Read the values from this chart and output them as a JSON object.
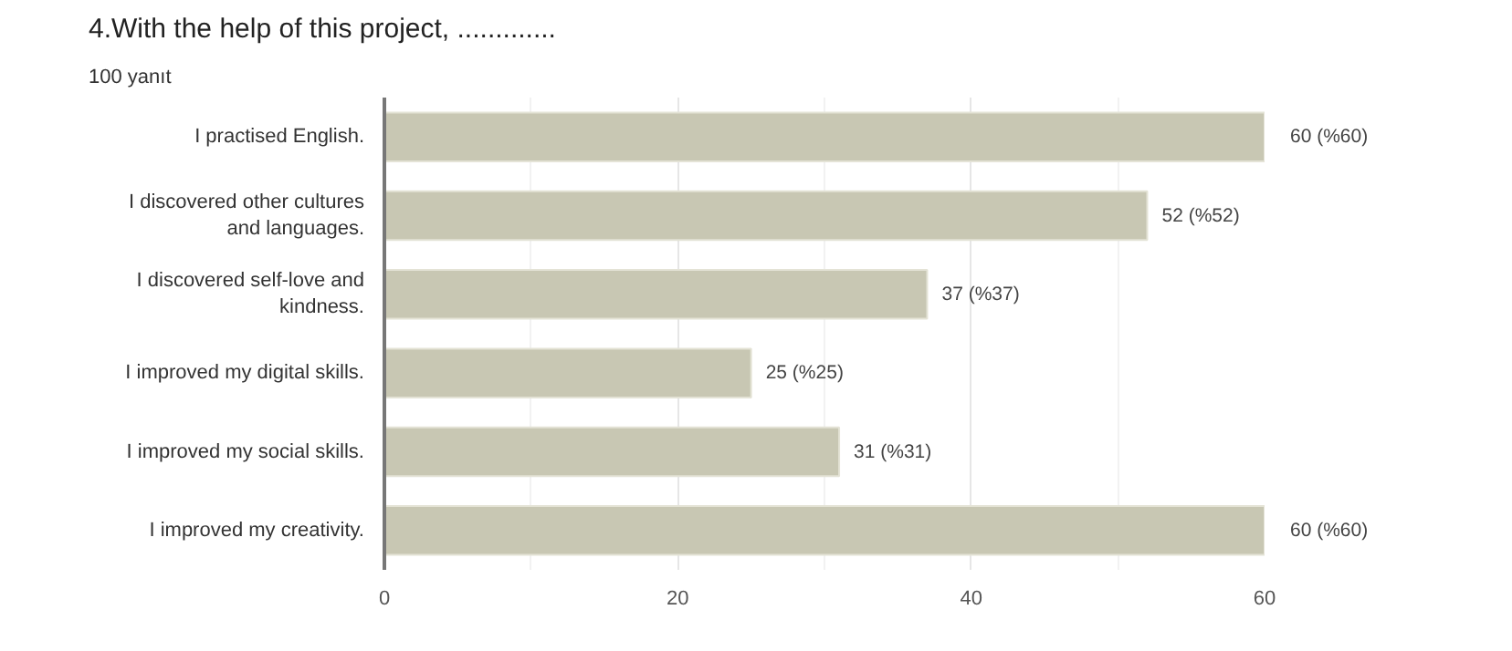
{
  "chart_data": {
    "type": "bar",
    "orientation": "horizontal",
    "title": "4.With the help of this project, .............",
    "subtitle": "100 yanıt",
    "categories": [
      "I practised English.",
      "I discovered other cultures and languages.",
      "I discovered self-love and kindness.",
      "I improved my digital skills.",
      "I improved my social skills.",
      "I improved my creativity."
    ],
    "values": [
      60,
      52,
      37,
      25,
      31,
      60
    ],
    "value_labels": [
      "60 (%60)",
      "52 (%52)",
      "37 (%37)",
      "25 (%25)",
      "31 (%31)",
      "60 (%60)"
    ],
    "color": "#c8c7b3",
    "xlim": [
      0,
      60
    ],
    "xticks": [
      0,
      20,
      40,
      60
    ],
    "grid": "x"
  }
}
